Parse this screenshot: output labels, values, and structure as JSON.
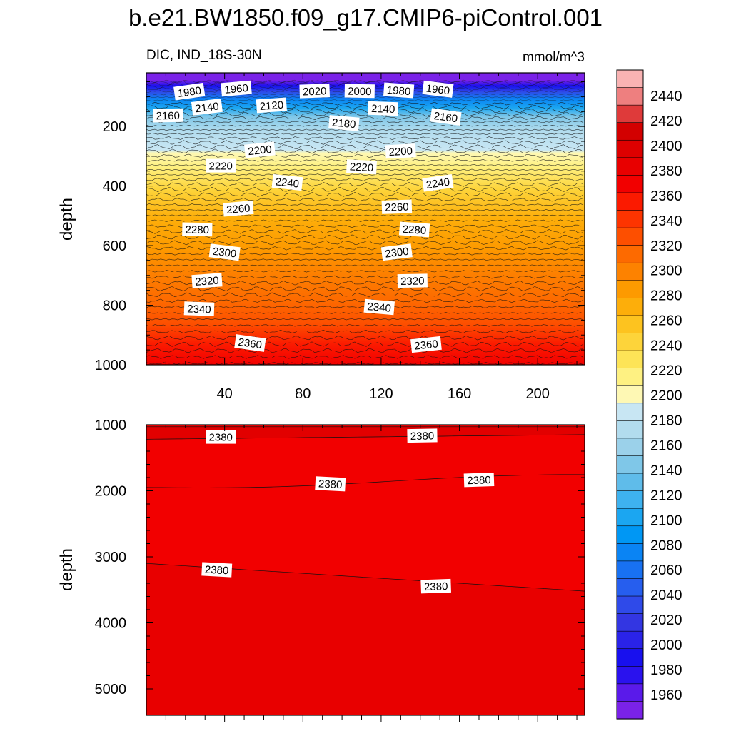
{
  "figure": {
    "title": "b.e21.BW1850.f09_g17.CMIP6-piControl.001",
    "variable_label": "DIC, IND_18S-30N",
    "units_label": "mmol/m^3"
  },
  "chart_data": [
    {
      "type": "heatmap",
      "panel": "upper",
      "title": "",
      "xlabel": "",
      "ylabel": "depth",
      "xlim": [
        0,
        224
      ],
      "ylim": [
        1000,
        20
      ],
      "y_inverted": true,
      "xticks": [
        40,
        80,
        120,
        160,
        200
      ],
      "yticks": [
        200,
        400,
        600,
        800,
        1000
      ],
      "contour_labels": [
        {
          "value": "1980",
          "x": 22,
          "y": 84
        },
        {
          "value": "1960",
          "x": 46,
          "y": 74
        },
        {
          "value": "2020",
          "x": 86,
          "y": 82
        },
        {
          "value": "2000",
          "x": 109,
          "y": 82
        },
        {
          "value": "1980",
          "x": 129,
          "y": 80
        },
        {
          "value": "1960",
          "x": 149,
          "y": 76
        },
        {
          "value": "2140",
          "x": 31,
          "y": 136
        },
        {
          "value": "2120",
          "x": 64,
          "y": 130
        },
        {
          "value": "2160",
          "x": 11,
          "y": 164
        },
        {
          "value": "2140",
          "x": 121,
          "y": 141
        },
        {
          "value": "2180",
          "x": 101,
          "y": 190
        },
        {
          "value": "2160",
          "x": 153,
          "y": 169
        },
        {
          "value": "2200",
          "x": 58,
          "y": 280
        },
        {
          "value": "2200",
          "x": 130,
          "y": 284
        },
        {
          "value": "2220",
          "x": 38,
          "y": 333
        },
        {
          "value": "2220",
          "x": 110,
          "y": 337
        },
        {
          "value": "2240",
          "x": 72,
          "y": 389
        },
        {
          "value": "2240",
          "x": 149,
          "y": 391
        },
        {
          "value": "2260",
          "x": 47,
          "y": 477
        },
        {
          "value": "2260",
          "x": 128,
          "y": 471
        },
        {
          "value": "2280",
          "x": 26,
          "y": 547
        },
        {
          "value": "2280",
          "x": 137,
          "y": 547
        },
        {
          "value": "2300",
          "x": 40,
          "y": 623
        },
        {
          "value": "2300",
          "x": 128,
          "y": 623
        },
        {
          "value": "2320",
          "x": 31,
          "y": 719
        },
        {
          "value": "2320",
          "x": 136,
          "y": 719
        },
        {
          "value": "2340",
          "x": 27,
          "y": 813
        },
        {
          "value": "2340",
          "x": 119,
          "y": 807
        },
        {
          "value": "2360",
          "x": 53,
          "y": 928
        },
        {
          "value": "2360",
          "x": 143,
          "y": 933
        }
      ]
    },
    {
      "type": "heatmap",
      "panel": "lower",
      "title": "",
      "xlabel": "",
      "ylabel": "depth",
      "xlim": [
        0,
        224
      ],
      "ylim": [
        5400,
        1000
      ],
      "y_inverted": true,
      "yticks": [
        1000,
        2000,
        3000,
        4000,
        5000
      ],
      "contour_labels": [
        {
          "value": "2380",
          "x": 38,
          "y": 1190
        },
        {
          "value": "2380",
          "x": 141,
          "y": 1170
        },
        {
          "value": "2380",
          "x": 94,
          "y": 1900
        },
        {
          "value": "2380",
          "x": 170,
          "y": 1840
        },
        {
          "value": "2380",
          "x": 36,
          "y": 3200
        },
        {
          "value": "2380",
          "x": 148,
          "y": 3450
        }
      ]
    }
  ],
  "colorbar": {
    "labels": [
      "2440",
      "2420",
      "2400",
      "2380",
      "2360",
      "2340",
      "2320",
      "2300",
      "2280",
      "2260",
      "2240",
      "2220",
      "2200",
      "2180",
      "2160",
      "2140",
      "2120",
      "2100",
      "2080",
      "2060",
      "2040",
      "2020",
      "2000",
      "1980",
      "1960"
    ],
    "colors": [
      "#f9b3b3",
      "#ee7f7f",
      "#df3a3a",
      "#d30000",
      "#dd0000",
      "#e80000",
      "#f20000",
      "#fb1a00",
      "#fd3400",
      "#fd4f00",
      "#fd6a00",
      "#fd8200",
      "#fd9a00",
      "#fdae0a",
      "#fdc31f",
      "#fdd43a",
      "#fde457",
      "#fef182",
      "#fef8b4",
      "#c8e6f3",
      "#b2dcee",
      "#9bd1ea",
      "#7fc7e8",
      "#5fbcea",
      "#3eb2ef",
      "#1ba6f1",
      "#0097f4",
      "#0a84f4",
      "#1871f2",
      "#265eee",
      "#2f4ae9",
      "#3336e2",
      "#2a23e8",
      "#1810ee",
      "#2a12ee",
      "#5a1aea",
      "#7a22e8"
    ]
  }
}
